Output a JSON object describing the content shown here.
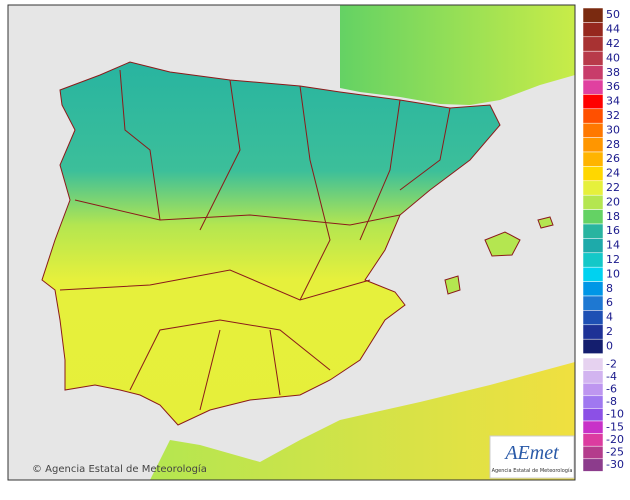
{
  "legend": {
    "upper": [
      {
        "label": "50",
        "color": "#7a2a10"
      },
      {
        "label": "44",
        "color": "#96281e"
      },
      {
        "label": "42",
        "color": "#a83232"
      },
      {
        "label": "40",
        "color": "#b83a4a"
      },
      {
        "label": "38",
        "color": "#c83c6a"
      },
      {
        "label": "36",
        "color": "#e040a0"
      },
      {
        "label": "34",
        "color": "#ff0000"
      },
      {
        "label": "32",
        "color": "#ff5000"
      },
      {
        "label": "30",
        "color": "#ff7800"
      },
      {
        "label": "28",
        "color": "#ff9600"
      },
      {
        "label": "26",
        "color": "#ffb400"
      },
      {
        "label": "24",
        "color": "#ffd700"
      },
      {
        "label": "22",
        "color": "#e6f03c"
      },
      {
        "label": "20",
        "color": "#b4e650"
      },
      {
        "label": "18",
        "color": "#64d264"
      },
      {
        "label": "16",
        "color": "#28b4a0"
      },
      {
        "label": "14",
        "color": "#1eaaaa"
      },
      {
        "label": "12",
        "color": "#14c8c8"
      },
      {
        "label": "10",
        "color": "#00d2f0"
      },
      {
        "label": "8",
        "color": "#0096e6"
      },
      {
        "label": "6",
        "color": "#1e78d2"
      },
      {
        "label": "4",
        "color": "#1e50b4"
      },
      {
        "label": "2",
        "color": "#1e3296"
      },
      {
        "label": "0",
        "color": "#141e6e"
      }
    ],
    "lower": [
      {
        "label": "-2",
        "color": "#e6d2f0"
      },
      {
        "label": "-4",
        "color": "#d2b4f0"
      },
      {
        "label": "-6",
        "color": "#be96f0"
      },
      {
        "label": "-8",
        "color": "#a078f0"
      },
      {
        "label": "-10",
        "color": "#8c50e6"
      },
      {
        "label": "-15",
        "color": "#c832c8"
      },
      {
        "label": "-20",
        "color": "#dc3ca0"
      },
      {
        "label": "-25",
        "color": "#b43c8c"
      },
      {
        "label": "-30",
        "color": "#8c3c8c"
      }
    ]
  },
  "credit": "© Agencia Estatal de Meteorología",
  "logo": {
    "mark": "AEmet",
    "text": "Agencia Estatal de Meteorología"
  }
}
